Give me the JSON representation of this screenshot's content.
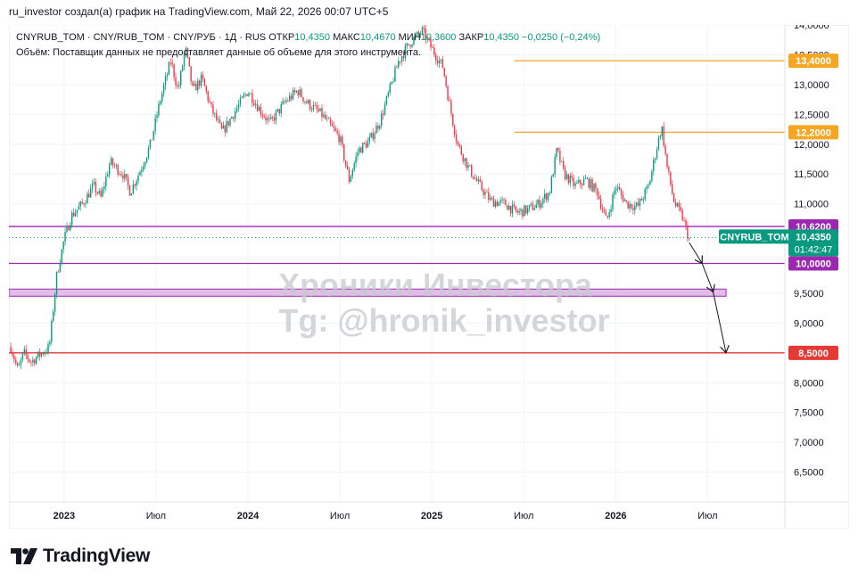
{
  "header": {
    "credit": "ru_investor создал(а) график на TradingView.com, Май 22, 2026 00:07 UTC+5"
  },
  "legend": {
    "symbol": "CNYRUB_TOM · CNY/RUB_TOM · CNY/РУБ · 1Д · RUS",
    "open_label": "ОТКР",
    "open": "10,4350",
    "high_label": "МАКС",
    "high": "10,4670",
    "low_label": "МИН",
    "low": "10,3600",
    "close_label": "ЗАКР",
    "close": "10,4350",
    "change": "−0,0250 (−0,24%)",
    "volume_note": "Объём: Поставщик данных не предоставляет данные об объеме для этого инструмента."
  },
  "watermark": {
    "line1": "Хроники Инвестора",
    "line2": "Tg: @hronik_investor"
  },
  "branding": {
    "logo_text": "TradingView",
    "logo_icon": "tradingview-logo-icon"
  },
  "chart_data": {
    "type": "candlestick",
    "symbol": "CNYRUB_TOM",
    "timeframe": "1Д",
    "ylim": [
      6.0,
      14.0
    ],
    "y_ticks": [
      "14,0000",
      "13,5000",
      "13,0000",
      "12,5000",
      "12,0000",
      "11,5000",
      "11,0000",
      "10,5000",
      "10,0000",
      "9,5000",
      "9,0000",
      "8,5000",
      "8,0000",
      "7,5000",
      "7,0000",
      "6,5000"
    ],
    "x_ticks": [
      {
        "label": "2023",
        "t": 2023.0
      },
      {
        "label": "Июл",
        "t": 2023.5
      },
      {
        "label": "2024",
        "t": 2024.0
      },
      {
        "label": "Июл",
        "t": 2024.5
      },
      {
        "label": "2025",
        "t": 2025.0
      },
      {
        "label": "Июл",
        "t": 2025.5
      },
      {
        "label": "2026",
        "t": 2026.0
      },
      {
        "label": "Июл",
        "t": 2026.5
      }
    ],
    "xlim": [
      2022.7,
      2026.92
    ],
    "price_path": [
      [
        2022.71,
        8.6
      ],
      [
        2022.75,
        8.2
      ],
      [
        2022.78,
        8.5
      ],
      [
        2022.82,
        8.35
      ],
      [
        2022.86,
        8.45
      ],
      [
        2022.92,
        8.6
      ],
      [
        2022.96,
        9.8
      ],
      [
        2023.0,
        10.4
      ],
      [
        2023.04,
        10.8
      ],
      [
        2023.1,
        11.0
      ],
      [
        2023.16,
        11.3
      ],
      [
        2023.2,
        11.1
      ],
      [
        2023.25,
        11.7
      ],
      [
        2023.32,
        11.5
      ],
      [
        2023.36,
        11.2
      ],
      [
        2023.42,
        11.6
      ],
      [
        2023.47,
        12.0
      ],
      [
        2023.52,
        12.7
      ],
      [
        2023.58,
        13.4
      ],
      [
        2023.62,
        12.9
      ],
      [
        2023.66,
        13.6
      ],
      [
        2023.7,
        12.9
      ],
      [
        2023.75,
        13.1
      ],
      [
        2023.8,
        12.6
      ],
      [
        2023.86,
        12.2
      ],
      [
        2023.92,
        12.5
      ],
      [
        2024.0,
        12.9
      ],
      [
        2024.06,
        12.6
      ],
      [
        2024.12,
        12.35
      ],
      [
        2024.2,
        12.7
      ],
      [
        2024.27,
        12.9
      ],
      [
        2024.32,
        12.7
      ],
      [
        2024.4,
        12.5
      ],
      [
        2024.45,
        12.3
      ],
      [
        2024.5,
        12.1
      ],
      [
        2024.55,
        11.4
      ],
      [
        2024.6,
        11.9
      ],
      [
        2024.66,
        12.05
      ],
      [
        2024.72,
        12.4
      ],
      [
        2024.77,
        12.9
      ],
      [
        2024.82,
        13.4
      ],
      [
        2024.88,
        13.7
      ],
      [
        2024.95,
        13.9
      ],
      [
        2025.0,
        13.6
      ],
      [
        2025.06,
        13.3
      ],
      [
        2025.1,
        12.6
      ],
      [
        2025.14,
        12.0
      ],
      [
        2025.2,
        11.6
      ],
      [
        2025.26,
        11.3
      ],
      [
        2025.32,
        11.05
      ],
      [
        2025.4,
        11.0
      ],
      [
        2025.46,
        10.85
      ],
      [
        2025.52,
        10.9
      ],
      [
        2025.58,
        11.0
      ],
      [
        2025.64,
        11.2
      ],
      [
        2025.68,
        11.9
      ],
      [
        2025.72,
        11.5
      ],
      [
        2025.78,
        11.3
      ],
      [
        2025.84,
        11.4
      ],
      [
        2025.9,
        11.2
      ],
      [
        2025.95,
        10.7
      ],
      [
        2026.0,
        11.3
      ],
      [
        2026.06,
        11.0
      ],
      [
        2026.12,
        10.95
      ],
      [
        2026.18,
        11.3
      ],
      [
        2026.22,
        11.9
      ],
      [
        2026.25,
        12.3
      ],
      [
        2026.28,
        11.6
      ],
      [
        2026.32,
        11.0
      ],
      [
        2026.36,
        10.8
      ],
      [
        2026.4,
        10.4
      ]
    ],
    "levels": [
      {
        "price": 13.4,
        "label": "13,4000",
        "color": "#f5a623",
        "from_t": 2025.45
      },
      {
        "price": 12.2,
        "label": "12,2000",
        "color": "#f5a623",
        "from_t": 2025.45
      },
      {
        "price": 10.62,
        "label": "10,6200",
        "color": "#9c27b0",
        "from_t": 2022.7
      },
      {
        "price": 10.0,
        "label": "10,0000",
        "color": "#9c27b0",
        "from_t": 2022.7
      },
      {
        "price": 8.5,
        "label": "8,5000",
        "color": "#e53935",
        "from_t": 2022.7
      }
    ],
    "zone": {
      "from": 9.45,
      "to": 9.57,
      "color": "#e1bee7"
    },
    "current": {
      "name": "CNYRUB_TOM",
      "price": "10,4350",
      "countdown": "01:42:47",
      "value": 10.435,
      "color": "#089981"
    },
    "projection": [
      [
        2026.4,
        10.35
      ],
      [
        2026.47,
        10.0
      ],
      [
        2026.53,
        9.52
      ],
      [
        2026.6,
        8.5
      ]
    ],
    "colors": {
      "up": "#089981",
      "down": "#f23645"
    }
  }
}
